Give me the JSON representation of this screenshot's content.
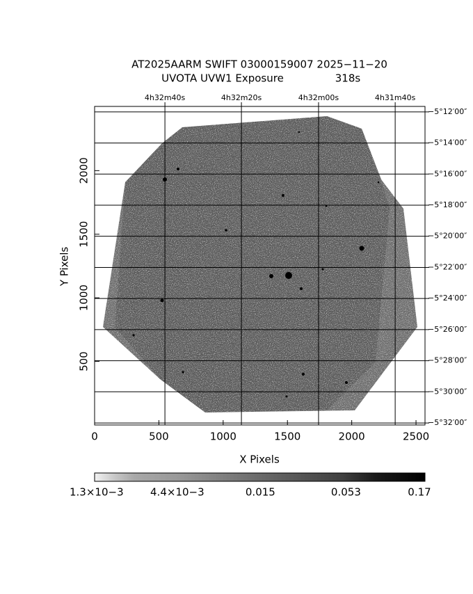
{
  "chart_data": {
    "type": "image",
    "title": "AT2025AARM SWIFT 03000159007 2025−11−20",
    "subtitle": "UVOTA UVW1 Exposure",
    "exposure": "318s",
    "x_label": "X Pixels",
    "y_label": "Y Pixels",
    "xlim": [
      0,
      2570
    ],
    "ylim": [
      0,
      2505
    ],
    "xticks": [
      0,
      500,
      1000,
      1500,
      2000,
      2500
    ],
    "yticks": [
      500,
      1000,
      1500,
      2000
    ],
    "top_ticks": [
      {
        "value": 547,
        "label": "4h32m40s"
      },
      {
        "value": 1142,
        "label": "4h32m20s"
      },
      {
        "value": 1742,
        "label": "4h32m00s"
      },
      {
        "value": 2338,
        "label": "4h31m40s"
      }
    ],
    "right_ticks": [
      {
        "value": 2462,
        "label": "−5°12′00″"
      },
      {
        "value": 2217,
        "label": "−5°14′00″"
      },
      {
        "value": 1973,
        "label": "−5°16′00″"
      },
      {
        "value": 1728,
        "label": "−5°18′00″"
      },
      {
        "value": 1484,
        "label": "−5°20′00″"
      },
      {
        "value": 1239,
        "label": "−5°22′00″"
      },
      {
        "value": 995,
        "label": "−5°24′00″"
      },
      {
        "value": 750,
        "label": "−5°26′00″"
      },
      {
        "value": 505,
        "label": "−5°28′00″"
      },
      {
        "value": 261,
        "label": "−5°30′00″"
      },
      {
        "value": 16,
        "label": "−5°32′00″"
      }
    ],
    "colorbar": {
      "scale": "log",
      "lim": [
        0.0013,
        0.17
      ],
      "ticks": [
        {
          "value": 0.0013,
          "label": "1.3×10−3"
        },
        {
          "value": 0.0044,
          "label": "4.4×10−3"
        },
        0.015,
        0.053,
        0.17
      ]
    }
  }
}
